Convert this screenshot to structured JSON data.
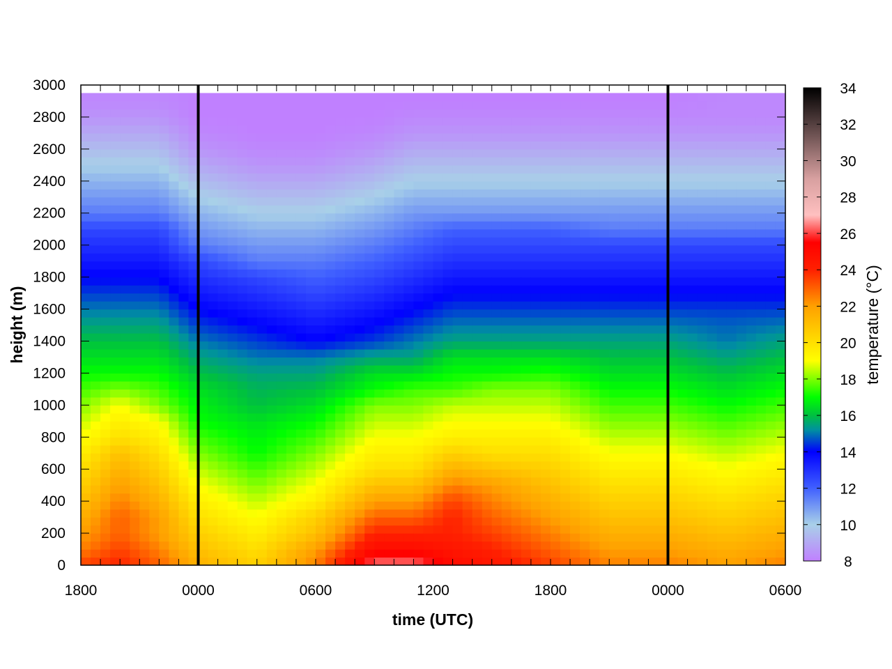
{
  "chart_data": {
    "type": "heatmap",
    "title": "",
    "xlabel": "time (UTC)",
    "ylabel": "height (m)",
    "x_tick_labels": [
      "1800",
      "0000",
      "0600",
      "1200",
      "1800",
      "0000",
      "0600"
    ],
    "x_ticks_hours": [
      0,
      6,
      12,
      18,
      24,
      30,
      36
    ],
    "x_range_hours": [
      0,
      36
    ],
    "x_minor_tick_hours": 1,
    "y_ticks": [
      0,
      200,
      400,
      600,
      800,
      1000,
      1200,
      1400,
      1600,
      1800,
      2000,
      2200,
      2400,
      2600,
      2800,
      3000
    ],
    "ylim": [
      0,
      3000
    ],
    "data_top_m": 2950,
    "midnight_lines_hours": [
      6,
      30
    ],
    "colorbar": {
      "label": "temperature (°C)",
      "range": [
        8,
        34
      ],
      "ticks": [
        8,
        10,
        12,
        14,
        16,
        18,
        20,
        22,
        24,
        26,
        28,
        30,
        32,
        34
      ],
      "colors": [
        {
          "v": 8,
          "c": "#c080ff"
        },
        {
          "v": 10,
          "c": "#a8d0e8"
        },
        {
          "v": 12,
          "c": "#4060ff"
        },
        {
          "v": 14,
          "c": "#0000ff"
        },
        {
          "v": 15.2,
          "c": "#0090a0"
        },
        {
          "v": 16,
          "c": "#00c040"
        },
        {
          "v": 17,
          "c": "#00ff00"
        },
        {
          "v": 19,
          "c": "#ffff00"
        },
        {
          "v": 22,
          "c": "#ffa000"
        },
        {
          "v": 24,
          "c": "#ff2000"
        },
        {
          "v": 25.5,
          "c": "#ff0000"
        },
        {
          "v": 27,
          "c": "#ffc0c0"
        },
        {
          "v": 29,
          "c": "#d8a0a0"
        },
        {
          "v": 31,
          "c": "#806060"
        },
        {
          "v": 34,
          "c": "#000000"
        }
      ]
    },
    "height_levels_m": [
      0,
      100,
      200,
      300,
      400,
      500,
      600,
      700,
      800,
      900,
      1000,
      1100,
      1200,
      1300,
      1400,
      1500,
      1600,
      1700,
      1800,
      1900,
      2000,
      2100,
      2200,
      2300,
      2400,
      2500,
      2600,
      2700,
      2800,
      2900
    ],
    "temperature_profiles_c": [
      {
        "hour": 0,
        "t": [
          23.5,
          22.5,
          22,
          21.5,
          21,
          20.5,
          20,
          19.5,
          19,
          18.5,
          18,
          17.5,
          17,
          16.5,
          16,
          15.5,
          15,
          14.5,
          14,
          13.5,
          13,
          12.5,
          11.5,
          11,
          10.5,
          10,
          9.5,
          9,
          8.5,
          8.2
        ]
      },
      {
        "hour": 2,
        "t": [
          24,
          23.5,
          23,
          23,
          22.5,
          22,
          21.5,
          21,
          20,
          19.5,
          19,
          18,
          17,
          16.5,
          16,
          15.5,
          15,
          14.5,
          14,
          13.5,
          13,
          12.5,
          11.5,
          11,
          10.5,
          10,
          9.5,
          9,
          8.5,
          8.2
        ]
      },
      {
        "hour": 4,
        "t": [
          23,
          22.5,
          22,
          22,
          21.5,
          21,
          20.5,
          20,
          19.5,
          19,
          18,
          17.5,
          17,
          16.5,
          16,
          15.5,
          15,
          14.5,
          14,
          13.5,
          13,
          12.5,
          11.5,
          11,
          10.5,
          10,
          9.5,
          9,
          8.5,
          8.2
        ]
      },
      {
        "hour": 6,
        "t": [
          21.5,
          21,
          20.5,
          20,
          19.5,
          19,
          18.5,
          18,
          17.5,
          17,
          16.8,
          16.5,
          16,
          15.5,
          15,
          14.5,
          14,
          13.5,
          13,
          12.5,
          11.5,
          11,
          10.5,
          10,
          9.5,
          9,
          8.5,
          8.2,
          8,
          8
        ]
      },
      {
        "hour": 9,
        "t": [
          20.5,
          20,
          19.5,
          19,
          18.5,
          18,
          17.5,
          17,
          16.8,
          16.5,
          16,
          15.8,
          15.5,
          15,
          14.5,
          14,
          13.5,
          13,
          12.5,
          11.5,
          11,
          10.5,
          10,
          9.5,
          9,
          8.5,
          8.2,
          8,
          8,
          8
        ]
      },
      {
        "hour": 12,
        "t": [
          22.5,
          22,
          21,
          20.5,
          19.5,
          19,
          18.5,
          18,
          17.5,
          17,
          16.5,
          16,
          15.5,
          15,
          14,
          13.5,
          13,
          12.5,
          12,
          11.5,
          11,
          10.5,
          10,
          9.5,
          9,
          8.5,
          8.2,
          8,
          8,
          8
        ]
      },
      {
        "hour": 15,
        "t": [
          26.5,
          25,
          24,
          23,
          22,
          21,
          20,
          19.5,
          19,
          18.5,
          18,
          17,
          16.5,
          15.5,
          14.5,
          14,
          13.5,
          13,
          12.5,
          12,
          11.5,
          11,
          10.5,
          10,
          9.5,
          9,
          8.5,
          8.2,
          8,
          8
        ]
      },
      {
        "hour": 17,
        "t": [
          26.5,
          25,
          24,
          23,
          22,
          21,
          20,
          19.5,
          19,
          18.5,
          18,
          17.5,
          16.5,
          15.5,
          15,
          14.5,
          14,
          13.5,
          13,
          12.5,
          12,
          11.5,
          11,
          10.5,
          10,
          9.5,
          9,
          8.5,
          8.2,
          8
        ]
      },
      {
        "hour": 19,
        "t": [
          25,
          24.5,
          24,
          24,
          23.5,
          22.5,
          21.5,
          20.5,
          19.5,
          19,
          18.5,
          17.5,
          17,
          16.5,
          15.5,
          15,
          14.5,
          14,
          13.5,
          13,
          12.5,
          12,
          11,
          10.5,
          10,
          9.5,
          9,
          8.5,
          8.2,
          8
        ]
      },
      {
        "hour": 21,
        "t": [
          24.5,
          24,
          23.5,
          23,
          22.5,
          22,
          21,
          20,
          19.5,
          19,
          18.5,
          18,
          17,
          16.5,
          15.5,
          15,
          14.5,
          14,
          13.5,
          13,
          12.5,
          12,
          11,
          10.5,
          10,
          9.5,
          9,
          8.5,
          8.2,
          8
        ]
      },
      {
        "hour": 24,
        "t": [
          23.5,
          23,
          22.5,
          22,
          21.5,
          21,
          20.5,
          20,
          19.5,
          19,
          18.5,
          18,
          17.2,
          16.5,
          15.5,
          15,
          14.5,
          14,
          13.5,
          13,
          12.5,
          12,
          11,
          10.5,
          10,
          9.5,
          9,
          8.5,
          8.2,
          8
        ]
      },
      {
        "hour": 27,
        "t": [
          22.5,
          22,
          21.5,
          21,
          20.5,
          20,
          19.5,
          19,
          18.5,
          18,
          17.5,
          17,
          16.5,
          16,
          15.5,
          15,
          14.5,
          14,
          13.5,
          13,
          12.5,
          11.5,
          11,
          10.5,
          10,
          9.5,
          9,
          8.5,
          8.2,
          8
        ]
      },
      {
        "hour": 30,
        "t": [
          22.5,
          22,
          21.5,
          21,
          20.5,
          20,
          19.5,
          19,
          18.5,
          18,
          17.5,
          17,
          16.5,
          16,
          15.5,
          15,
          14.5,
          14,
          13.5,
          13,
          12.5,
          11.5,
          11,
          10.5,
          10,
          9.5,
          9,
          8.5,
          8.2,
          8
        ]
      },
      {
        "hour": 33,
        "t": [
          22,
          21.5,
          21,
          20.5,
          20,
          19.5,
          19,
          18.5,
          18,
          17.5,
          17,
          16.5,
          16,
          15.5,
          15,
          14.8,
          14.5,
          14,
          13.5,
          13,
          12.5,
          11.5,
          11,
          10.5,
          10,
          9.5,
          9,
          8.5,
          8.2,
          8.2
        ]
      },
      {
        "hour": 36,
        "t": [
          22.5,
          22,
          21.5,
          21,
          20.5,
          20,
          19.5,
          19,
          18.5,
          18,
          17.5,
          17,
          16.5,
          16,
          15.5,
          15,
          14.5,
          14,
          13.5,
          13,
          12.5,
          11.5,
          11,
          10.5,
          10,
          9.5,
          9,
          8.5,
          8.2,
          8.2
        ]
      }
    ],
    "grid": false,
    "legend": "colorbar-right"
  }
}
